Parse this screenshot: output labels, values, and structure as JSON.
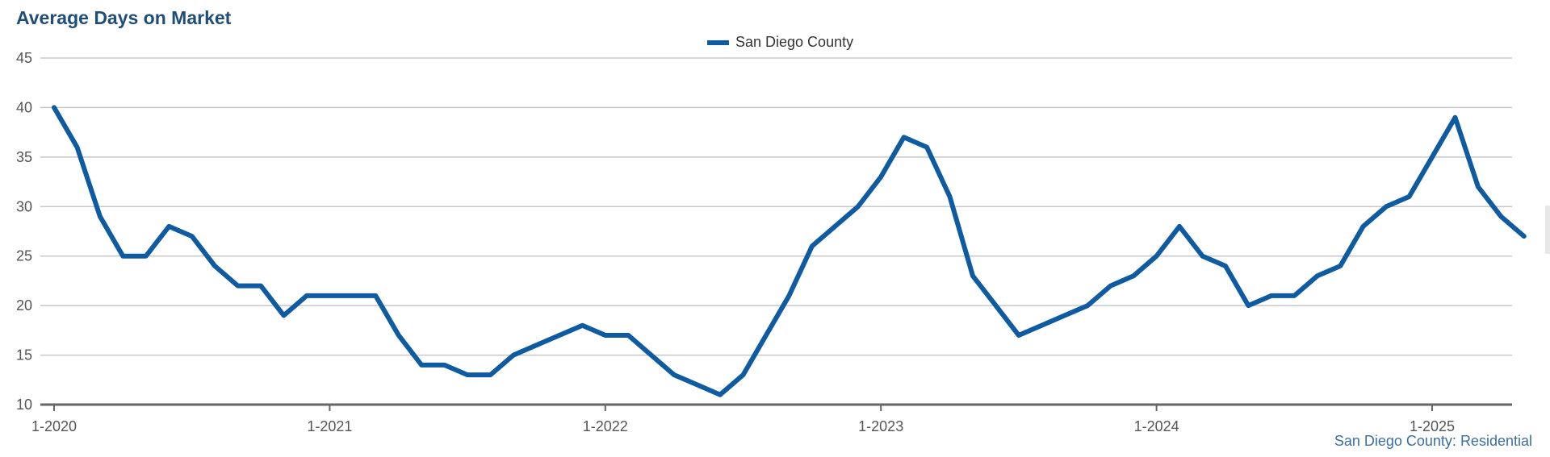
{
  "chart_data": {
    "type": "line",
    "title": "Average Days on Market",
    "xlabel": "",
    "ylabel": "",
    "ylim": [
      10,
      45
    ],
    "yticks": [
      10,
      15,
      20,
      25,
      30,
      35,
      40,
      45
    ],
    "xticks": [
      {
        "label": "1-2020",
        "index": 0
      },
      {
        "label": "1-2021",
        "index": 12
      },
      {
        "label": "1-2022",
        "index": 24
      },
      {
        "label": "1-2023",
        "index": 36
      },
      {
        "label": "1-2024",
        "index": 48
      },
      {
        "label": "1-2025",
        "index": 60
      }
    ],
    "grid": true,
    "legend_position": "top-center",
    "color": "#0e5ba2",
    "series": [
      {
        "name": "San Diego County",
        "values": [
          40,
          36,
          29,
          25,
          25,
          28,
          27,
          24,
          22,
          22,
          19,
          21,
          21,
          21,
          21,
          17,
          14,
          14,
          13,
          13,
          15,
          16,
          17,
          18,
          17,
          17,
          15,
          13,
          12,
          11,
          13,
          17,
          21,
          26,
          28,
          30,
          33,
          37,
          36,
          31,
          23,
          20,
          17,
          18,
          19,
          20,
          22,
          23,
          25,
          28,
          25,
          24,
          20,
          21,
          21,
          23,
          24,
          28,
          30,
          31,
          35,
          39,
          32,
          29,
          27
        ]
      }
    ]
  },
  "footer": {
    "source_label": "San Diego County: Residential"
  }
}
